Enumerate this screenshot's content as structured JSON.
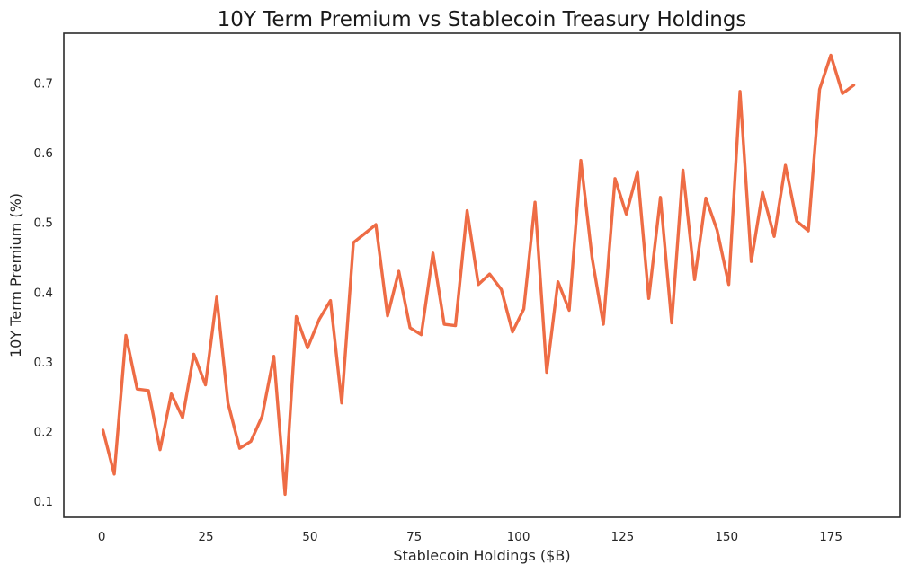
{
  "chart_data": {
    "type": "line",
    "title": "10Y Term Premium vs Stablecoin Treasury Holdings",
    "xlabel": "Stablecoin Holdings ($B)",
    "ylabel": "10Y Term Premium (%)",
    "xlim": [
      -9.1,
      191.6
    ],
    "ylim": [
      0.077,
      0.7715
    ],
    "xticks": [
      0,
      25,
      50,
      75,
      100,
      125,
      150,
      175
    ],
    "yticks": [
      0.1,
      0.2,
      0.3,
      0.4,
      0.5,
      0.6,
      0.7
    ],
    "grid": false,
    "series": [
      {
        "name": "Term Premium",
        "color": "#ee6c45",
        "x": [
          0.3,
          3.0,
          5.8,
          8.5,
          11.2,
          14.0,
          16.7,
          19.4,
          22.1,
          24.9,
          27.6,
          30.3,
          33.1,
          35.8,
          38.5,
          41.3,
          44.0,
          46.7,
          49.4,
          52.2,
          54.9,
          57.6,
          60.4,
          63.1,
          65.8,
          68.6,
          71.3,
          74.0,
          76.7,
          79.5,
          82.2,
          84.9,
          87.7,
          90.4,
          93.1,
          95.9,
          98.6,
          101.3,
          104.0,
          106.8,
          109.5,
          112.2,
          115.0,
          117.7,
          120.4,
          123.2,
          125.9,
          128.6,
          131.3,
          134.1,
          136.8,
          139.5,
          142.3,
          145.0,
          147.7,
          150.5,
          153.2,
          155.9,
          158.6,
          161.4,
          164.1,
          166.8,
          169.6,
          172.3,
          175.0,
          177.8,
          180.5
        ],
        "y": [
          0.202,
          0.139,
          0.338,
          0.261,
          0.259,
          0.174,
          0.254,
          0.22,
          0.311,
          0.267,
          0.393,
          0.241,
          0.176,
          0.186,
          0.222,
          0.308,
          0.11,
          0.365,
          0.32,
          0.361,
          0.388,
          0.241,
          0.471,
          0.484,
          0.497,
          0.366,
          0.43,
          0.349,
          0.339,
          0.456,
          0.354,
          0.352,
          0.517,
          0.411,
          0.426,
          0.404,
          0.343,
          0.376,
          0.529,
          0.285,
          0.415,
          0.374,
          0.589,
          0.449,
          0.354,
          0.563,
          0.512,
          0.573,
          0.391,
          0.536,
          0.356,
          0.575,
          0.418,
          0.535,
          0.489,
          0.411,
          0.688,
          0.444,
          0.543,
          0.48,
          0.582,
          0.502,
          0.488,
          0.691,
          0.74,
          0.685,
          0.697
        ]
      }
    ]
  }
}
